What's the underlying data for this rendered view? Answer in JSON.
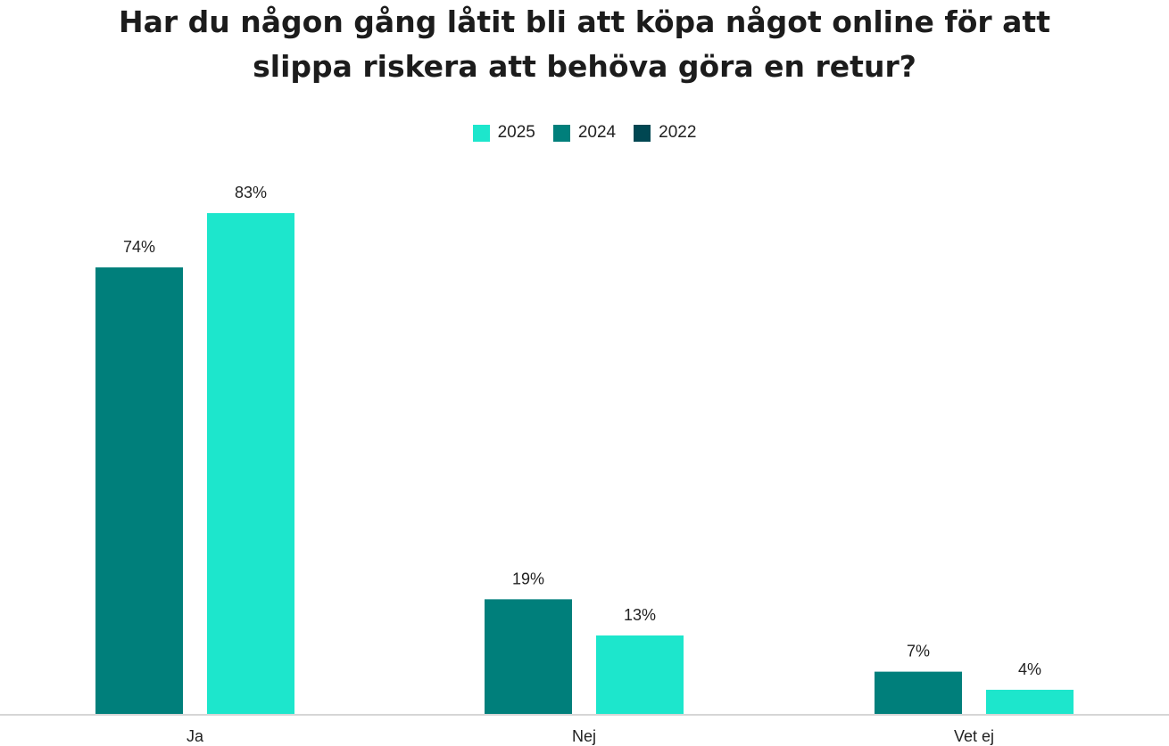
{
  "chart_data": {
    "type": "bar",
    "title_lines": [
      "Har du någon gång låtit bli att köpa något online för att",
      "slippa riskera att behöva göra en retur?"
    ],
    "categories": [
      "Ja",
      "Nej",
      "Vet ej"
    ],
    "series": [
      {
        "name": "2025",
        "color": "#1de6cc",
        "values": [
          83,
          13,
          4
        ],
        "labels": [
          "83%",
          "13%",
          "4%"
        ]
      },
      {
        "name": "2024",
        "color": "#007f7b",
        "values": [
          74,
          19,
          7
        ],
        "labels": [
          "74%",
          "19%",
          "7%"
        ]
      },
      {
        "name": "2022",
        "color": "#004752",
        "values": [
          null,
          null,
          null
        ],
        "labels": [
          "",
          "",
          ""
        ]
      }
    ],
    "bar_order": [
      "2024",
      "2025"
    ],
    "unit": "%",
    "ylim": [
      0,
      100
    ],
    "grid": false,
    "legend_position": "top-center",
    "xlabel": "",
    "ylabel": ""
  }
}
